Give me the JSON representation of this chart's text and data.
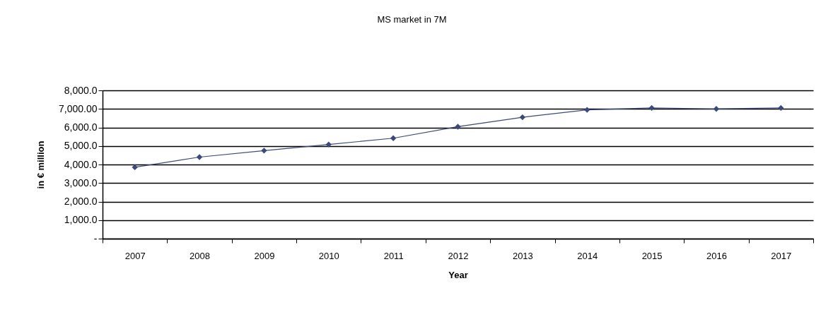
{
  "chart_data": {
    "type": "line",
    "title": "MS market in 7M",
    "xlabel": "Year",
    "ylabel": "in € million",
    "categories": [
      "2007",
      "2008",
      "2009",
      "2010",
      "2011",
      "2012",
      "2013",
      "2014",
      "2015",
      "2016",
      "2017"
    ],
    "series": [
      {
        "color": "#3b4a7a",
        "values": [
          3850,
          4400,
          4750,
          5080,
          5420,
          6040,
          6550,
          6950,
          7050,
          7000,
          7050
        ]
      }
    ],
    "ylim": [
      0,
      8000
    ],
    "yticks": [
      {
        "value": 0,
        "label": "-"
      },
      {
        "value": 1000,
        "label": "1,000.0"
      },
      {
        "value": 2000,
        "label": "2,000.0"
      },
      {
        "value": 3000,
        "label": "3,000.0"
      },
      {
        "value": 4000,
        "label": "4,000.0"
      },
      {
        "value": 5000,
        "label": "5,000.0"
      },
      {
        "value": 6000,
        "label": "6,000.0"
      },
      {
        "value": 7000,
        "label": "7,000.00"
      },
      {
        "value": 8000,
        "label": "8,000.0"
      }
    ],
    "grid": "y",
    "marker": "diamond",
    "line_style": "solid",
    "legend": false
  }
}
